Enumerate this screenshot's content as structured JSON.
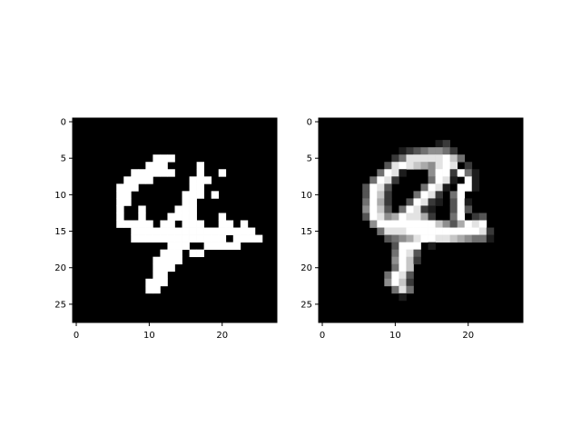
{
  "chart_data": [
    {
      "type": "heatmap",
      "title": "",
      "xlabel": "",
      "ylabel": "",
      "colormap": "gray",
      "shape": [
        28,
        28
      ],
      "xlim": [
        -0.5,
        27.5
      ],
      "ylim": [
        27.5,
        -0.5
      ],
      "x_ticks": [
        "0",
        "10",
        "20"
      ],
      "y_ticks": [
        "0",
        "5",
        "10",
        "15",
        "20",
        "25"
      ],
      "rows": [
        "............................",
        "............................",
        "............................",
        "............................",
        "............................",
        "...........###..............",
        "..........###....#..........",
        "........######...#..#.......",
        ".......####.....###.........",
        "......###.......##..........",
        "......##.......###.#........",
        "......##.......##...........",
        "......#..#....###...........",
        "......#..#...####...#.......",
        "......#####.##.###..##.#....",
        "........#################...",
        "........#############.####..",
        ".............###..#####.....",
        "............###.##..........",
        "...........####.............",
        "...........###..............",
        "...........##...............",
        "..........###...............",
        "..........##................",
        "............................",
        "............................",
        "............................",
        "............................"
      ]
    },
    {
      "type": "heatmap",
      "title": "",
      "xlabel": "",
      "ylabel": "",
      "colormap": "gray",
      "shape": [
        28,
        28
      ],
      "xlim": [
        -0.5,
        27.5
      ],
      "ylim": [
        27.5,
        -0.5
      ],
      "x_ticks": [
        "0",
        "10",
        "20"
      ],
      "y_ticks": [
        "0",
        "5",
        "10",
        "15",
        "20",
        "25"
      ],
      "rows": [
        "............................",
        "............................",
        "............................",
        "................12..........",
        "...........12345542.........",
        "..........2488888974........",
        ".........3898765898.2.......",
        "........4981...5992941......",
        ".......4982....4981.91......",
        "......3983....4981.991......",
        "......3972...4982.49........",
        "......4962..39821.391.......",
        "......5973.49821..393.......",
        "......3985698862..49.23.....",
        ".......5999999997536989.....",
        "........4888999999999982....",
        ".........345689988765441....",
        "..........3999.1............",
        "..........4983..............",
        "..........5972..............",
        "..........497...............",
        ".........4983...............",
        ".........5972...............",
        "..........484...............",
        "...........1................",
        "............................",
        "............................",
        "............................"
      ]
    }
  ]
}
